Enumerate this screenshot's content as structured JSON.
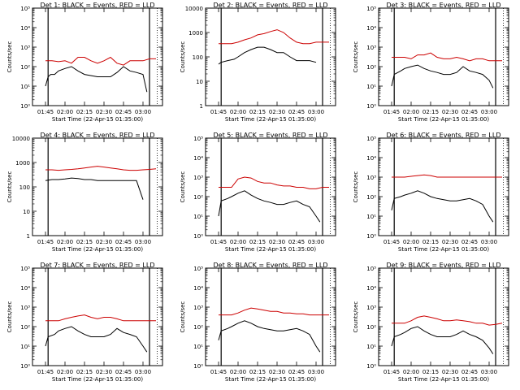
{
  "figure": {
    "xlabel": "Start Time (22-Apr-15 01:35:00)",
    "xtick_labels": [
      "01:45",
      "02:00",
      "02:15",
      "02:30",
      "02:45",
      "03:00"
    ],
    "ylabel": "Counts/sec",
    "ytick_labels_a": [
      "1",
      "10",
      "100",
      "1000",
      "10000"
    ],
    "ytick_labels_b": [
      "10⁰",
      "10¹",
      "10²",
      "10³",
      "10⁴",
      "10⁵"
    ]
  },
  "chart_data": [
    {
      "type": "line",
      "title": "Det 1: BLACK = Events, RED = LLD",
      "yscale": "log",
      "ylim": [
        1,
        100000
      ],
      "ytick_style": "b",
      "xlim": [
        "01:35",
        "03:15"
      ],
      "series": [
        {
          "name": "Events",
          "color": "#000000",
          "x": [
            "01:45",
            "01:47",
            "01:49",
            "01:52",
            "01:55",
            "02:00",
            "02:05",
            "02:10",
            "02:15",
            "02:25",
            "02:35",
            "02:40",
            "02:45",
            "02:50",
            "02:55",
            "03:00",
            "03:03"
          ],
          "y": [
            10,
            30,
            40,
            40,
            60,
            80,
            100,
            60,
            40,
            30,
            30,
            50,
            100,
            60,
            50,
            40,
            5
          ]
        },
        {
          "name": "LLD",
          "color": "#cc0000",
          "x": [
            "01:45",
            "01:50",
            "01:55",
            "02:00",
            "02:05",
            "02:10",
            "02:15",
            "02:20",
            "02:25",
            "02:30",
            "02:35",
            "02:40",
            "02:45",
            "02:50",
            "02:55",
            "03:00",
            "03:05",
            "03:10"
          ],
          "y": [
            200,
            200,
            180,
            200,
            150,
            300,
            300,
            200,
            150,
            200,
            300,
            150,
            120,
            200,
            200,
            200,
            250,
            250
          ]
        }
      ]
    },
    {
      "type": "line",
      "title": "Det 2: BLACK = Events, RED = LLD",
      "yscale": "log",
      "ylim": [
        1,
        10000
      ],
      "ytick_style": "a",
      "xlim": [
        "01:35",
        "03:15"
      ],
      "series": [
        {
          "name": "Events",
          "color": "#000000",
          "x": [
            "01:45",
            "01:47",
            "01:52",
            "01:57",
            "02:00",
            "02:05",
            "02:10",
            "02:15",
            "02:20",
            "02:25",
            "02:30",
            "02:35",
            "02:40",
            "02:45",
            "02:50",
            "02:55",
            "03:00"
          ],
          "y": [
            50,
            60,
            70,
            80,
            100,
            150,
            200,
            250,
            250,
            200,
            150,
            150,
            100,
            70,
            70,
            70,
            60
          ]
        },
        {
          "name": "LLD",
          "color": "#cc0000",
          "x": [
            "01:45",
            "01:50",
            "01:55",
            "02:00",
            "02:05",
            "02:10",
            "02:15",
            "02:20",
            "02:25",
            "02:30",
            "02:35",
            "02:40",
            "02:45",
            "02:50",
            "02:55",
            "03:00",
            "03:05",
            "03:10"
          ],
          "y": [
            350,
            350,
            350,
            400,
            500,
            600,
            800,
            900,
            1100,
            1300,
            1000,
            600,
            400,
            350,
            350,
            400,
            400,
            400
          ]
        }
      ]
    },
    {
      "type": "line",
      "title": "Det 3: BLACK = Events, RED = LLD",
      "yscale": "log",
      "ylim": [
        1,
        100000
      ],
      "ytick_style": "b",
      "xlim": [
        "01:35",
        "03:15"
      ],
      "series": [
        {
          "name": "Events",
          "color": "#000000",
          "x": [
            "01:45",
            "01:47",
            "01:52",
            "01:55",
            "02:00",
            "02:05",
            "02:10",
            "02:15",
            "02:20",
            "02:25",
            "02:30",
            "02:35",
            "02:40",
            "02:45",
            "02:50",
            "02:55",
            "03:00",
            "03:03"
          ],
          "y": [
            10,
            40,
            60,
            80,
            100,
            120,
            80,
            60,
            50,
            40,
            40,
            50,
            100,
            60,
            50,
            40,
            20,
            8
          ]
        },
        {
          "name": "LLD",
          "color": "#cc0000",
          "x": [
            "01:45",
            "01:50",
            "01:55",
            "02:00",
            "02:05",
            "02:10",
            "02:15",
            "02:20",
            "02:25",
            "02:30",
            "02:35",
            "02:40",
            "02:45",
            "02:50",
            "02:55",
            "03:00",
            "03:05",
            "03:10"
          ],
          "y": [
            300,
            300,
            300,
            250,
            400,
            400,
            500,
            300,
            250,
            250,
            300,
            250,
            200,
            250,
            250,
            200,
            200,
            200
          ]
        }
      ]
    },
    {
      "type": "line",
      "title": "Det 4: BLACK = Events, RED = LLD",
      "yscale": "log",
      "ylim": [
        1,
        10000
      ],
      "ytick_style": "a",
      "xlim": [
        "01:35",
        "03:15"
      ],
      "series": [
        {
          "name": "Events",
          "color": "#000000",
          "x": [
            "01:45",
            "01:50",
            "01:55",
            "02:00",
            "02:05",
            "02:10",
            "02:15",
            "02:20",
            "02:25",
            "02:30",
            "02:35",
            "02:40",
            "02:45",
            "02:50",
            "02:55",
            "03:00"
          ],
          "y": [
            180,
            200,
            200,
            210,
            230,
            220,
            200,
            200,
            180,
            180,
            180,
            180,
            180,
            180,
            180,
            30
          ]
        },
        {
          "name": "LLD",
          "color": "#cc0000",
          "x": [
            "01:45",
            "01:50",
            "01:55",
            "02:00",
            "02:05",
            "02:10",
            "02:15",
            "02:20",
            "02:25",
            "02:30",
            "02:35",
            "02:40",
            "02:45",
            "02:50",
            "02:55",
            "03:00",
            "03:05",
            "03:10"
          ],
          "y": [
            500,
            500,
            480,
            500,
            520,
            550,
            600,
            650,
            700,
            650,
            600,
            550,
            500,
            480,
            480,
            500,
            520,
            550
          ]
        }
      ]
    },
    {
      "type": "line",
      "title": "Det 5: BLACK = Events, RED = LLD",
      "yscale": "log",
      "ylim": [
        1,
        100000
      ],
      "ytick_style": "b",
      "xlim": [
        "01:35",
        "03:15"
      ],
      "series": [
        {
          "name": "Events",
          "color": "#000000",
          "x": [
            "01:45",
            "01:47",
            "01:52",
            "01:55",
            "02:00",
            "02:05",
            "02:10",
            "02:15",
            "02:20",
            "02:25",
            "02:30",
            "02:35",
            "02:40",
            "02:45",
            "02:50",
            "02:55",
            "03:00",
            "03:03"
          ],
          "y": [
            10,
            60,
            80,
            100,
            150,
            200,
            120,
            80,
            60,
            50,
            40,
            40,
            50,
            60,
            40,
            30,
            10,
            5
          ]
        },
        {
          "name": "LLD",
          "color": "#cc0000",
          "x": [
            "01:45",
            "01:50",
            "01:55",
            "02:00",
            "02:05",
            "02:10",
            "02:15",
            "02:20",
            "02:25",
            "02:30",
            "02:35",
            "02:40",
            "02:45",
            "02:50",
            "02:55",
            "03:00",
            "03:05",
            "03:10"
          ],
          "y": [
            300,
            300,
            300,
            800,
            1000,
            900,
            600,
            500,
            500,
            400,
            350,
            350,
            300,
            300,
            250,
            250,
            300,
            300
          ]
        }
      ]
    },
    {
      "type": "line",
      "title": "Det 6: BLACK = Events, RED = LLD",
      "yscale": "log",
      "ylim": [
        1,
        100000
      ],
      "ytick_style": "b",
      "xlim": [
        "01:35",
        "03:15"
      ],
      "series": [
        {
          "name": "Events",
          "color": "#000000",
          "x": [
            "01:45",
            "01:47",
            "01:52",
            "01:55",
            "02:00",
            "02:05",
            "02:10",
            "02:15",
            "02:20",
            "02:25",
            "02:30",
            "02:35",
            "02:40",
            "02:45",
            "02:50",
            "02:55",
            "03:00",
            "03:03"
          ],
          "y": [
            20,
            80,
            100,
            120,
            150,
            200,
            150,
            100,
            80,
            70,
            60,
            60,
            70,
            80,
            60,
            40,
            10,
            5
          ]
        },
        {
          "name": "LLD",
          "color": "#cc0000",
          "x": [
            "01:45",
            "01:50",
            "01:55",
            "02:00",
            "02:05",
            "02:10",
            "02:15",
            "02:20",
            "02:25",
            "02:30",
            "02:35",
            "02:40",
            "02:45",
            "02:50",
            "02:55",
            "03:00",
            "03:05",
            "03:10"
          ],
          "y": [
            1000,
            1000,
            1000,
            1100,
            1200,
            1300,
            1200,
            1000,
            1000,
            1000,
            1000,
            1000,
            1000,
            1000,
            1000,
            1000,
            1000,
            1000
          ]
        }
      ]
    },
    {
      "type": "line",
      "title": "Det 7: BLACK = Events, RED = LLD",
      "yscale": "log",
      "ylim": [
        1,
        100000
      ],
      "ytick_style": "b",
      "xlim": [
        "01:35",
        "03:15"
      ],
      "series": [
        {
          "name": "Events",
          "color": "#000000",
          "x": [
            "01:45",
            "01:47",
            "01:52",
            "01:55",
            "02:00",
            "02:05",
            "02:10",
            "02:15",
            "02:20",
            "02:25",
            "02:30",
            "02:35",
            "02:40",
            "02:45",
            "02:50",
            "02:55",
            "03:00",
            "03:03"
          ],
          "y": [
            10,
            30,
            40,
            60,
            80,
            100,
            60,
            40,
            30,
            30,
            30,
            40,
            80,
            50,
            40,
            30,
            10,
            5
          ]
        },
        {
          "name": "LLD",
          "color": "#cc0000",
          "x": [
            "01:45",
            "01:50",
            "01:55",
            "02:00",
            "02:05",
            "02:10",
            "02:15",
            "02:20",
            "02:25",
            "02:30",
            "02:35",
            "02:40",
            "02:45",
            "02:50",
            "02:55",
            "03:00",
            "03:05",
            "03:10"
          ],
          "y": [
            200,
            200,
            200,
            250,
            300,
            350,
            400,
            300,
            250,
            300,
            300,
            250,
            200,
            200,
            200,
            200,
            200,
            200
          ]
        }
      ]
    },
    {
      "type": "line",
      "title": "Det 8: BLACK = Events, RED = LLD",
      "yscale": "log",
      "ylim": [
        1,
        100000
      ],
      "ytick_style": "b",
      "xlim": [
        "01:35",
        "03:15"
      ],
      "series": [
        {
          "name": "Events",
          "color": "#000000",
          "x": [
            "01:45",
            "01:47",
            "01:52",
            "01:55",
            "02:00",
            "02:05",
            "02:10",
            "02:15",
            "02:20",
            "02:25",
            "02:30",
            "02:35",
            "02:40",
            "02:45",
            "02:50",
            "02:55",
            "03:00",
            "03:03"
          ],
          "y": [
            20,
            60,
            80,
            100,
            150,
            200,
            150,
            100,
            80,
            70,
            60,
            60,
            70,
            80,
            60,
            40,
            10,
            5
          ]
        },
        {
          "name": "LLD",
          "color": "#cc0000",
          "x": [
            "01:45",
            "01:50",
            "01:55",
            "02:00",
            "02:05",
            "02:10",
            "02:15",
            "02:20",
            "02:25",
            "02:30",
            "02:35",
            "02:40",
            "02:45",
            "02:50",
            "02:55",
            "03:00",
            "03:05",
            "03:10"
          ],
          "y": [
            400,
            400,
            400,
            500,
            700,
            900,
            800,
            700,
            600,
            600,
            500,
            500,
            450,
            450,
            400,
            400,
            400,
            400
          ]
        }
      ]
    },
    {
      "type": "line",
      "title": "Det 9: BLACK = Events, RED = LLD",
      "yscale": "log",
      "ylim": [
        1,
        100000
      ],
      "ytick_style": "b",
      "xlim": [
        "01:35",
        "03:15"
      ],
      "series": [
        {
          "name": "Events",
          "color": "#000000",
          "x": [
            "01:45",
            "01:47",
            "01:52",
            "01:55",
            "02:00",
            "02:05",
            "02:10",
            "02:15",
            "02:20",
            "02:25",
            "02:30",
            "02:35",
            "02:40",
            "02:45",
            "02:50",
            "02:55",
            "03:00",
            "03:03"
          ],
          "y": [
            10,
            30,
            40,
            50,
            80,
            100,
            60,
            40,
            30,
            30,
            30,
            40,
            60,
            40,
            30,
            20,
            8,
            4
          ]
        },
        {
          "name": "LLD",
          "color": "#cc0000",
          "x": [
            "01:45",
            "01:50",
            "01:55",
            "02:00",
            "02:05",
            "02:10",
            "02:15",
            "02:20",
            "02:25",
            "02:30",
            "02:35",
            "02:40",
            "02:45",
            "02:50",
            "02:55",
            "03:00",
            "03:05",
            "03:10"
          ],
          "y": [
            150,
            150,
            150,
            200,
            300,
            350,
            300,
            250,
            200,
            200,
            220,
            200,
            180,
            150,
            150,
            120,
            130,
            150
          ]
        }
      ]
    }
  ]
}
